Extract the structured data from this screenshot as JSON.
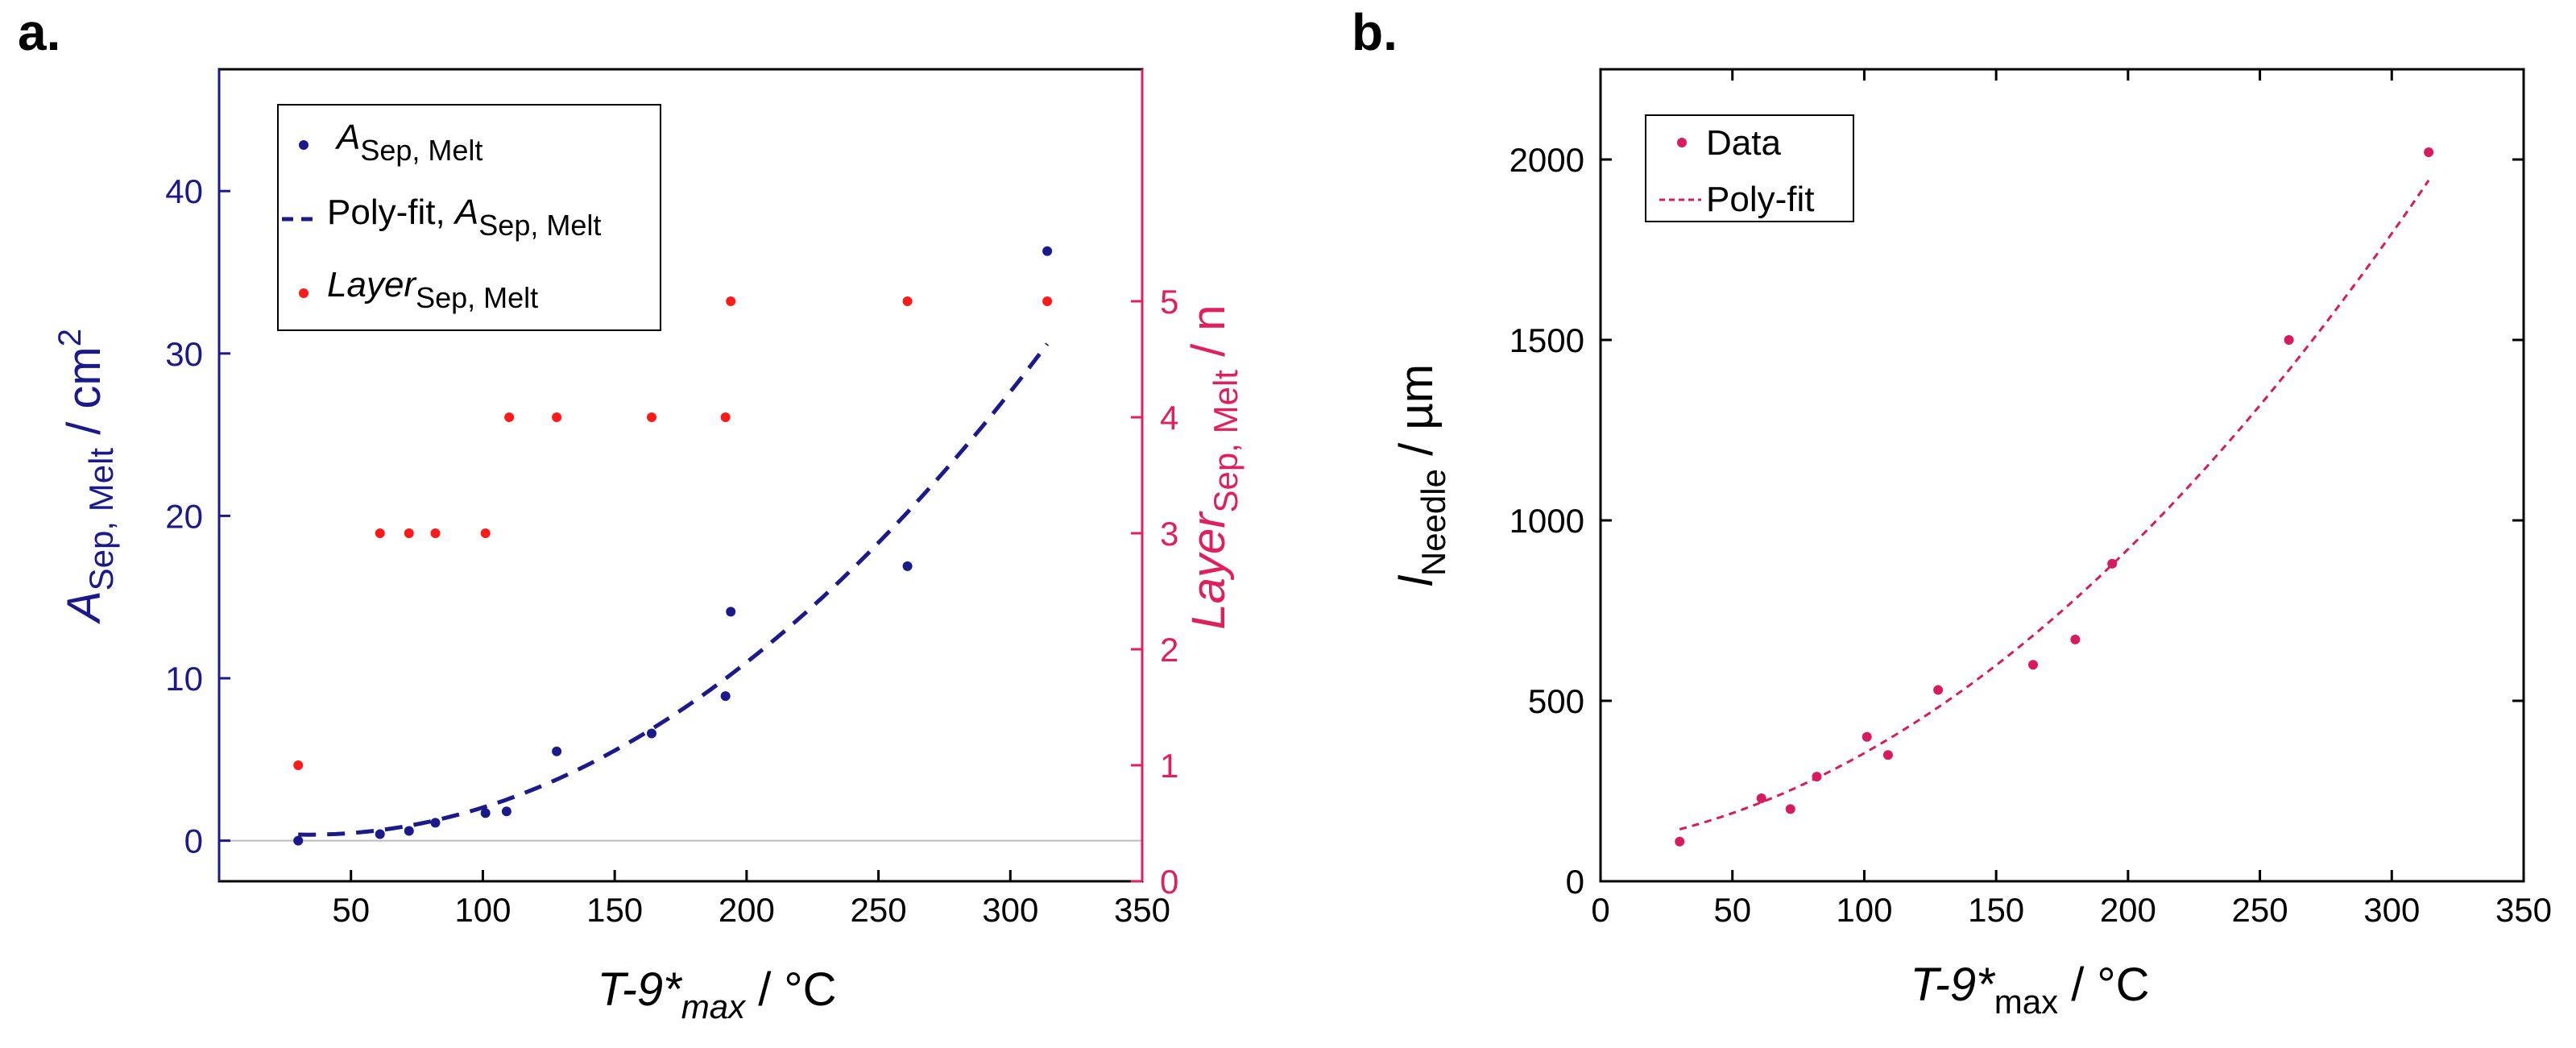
{
  "chart_data": [
    {
      "panel_label": "a.",
      "type": "scatter",
      "x_label": {
        "main": "T-9*",
        "sub": "max",
        "unit": " / °C"
      },
      "xlim": [
        0,
        350
      ],
      "x_ticks": [
        50,
        100,
        150,
        200,
        250,
        300,
        350
      ],
      "y_left": {
        "label": {
          "main": "A",
          "sub": "Sep, Melt",
          "unit": " / cm",
          "sup": "2"
        },
        "lim": [
          -2.5,
          47.5
        ],
        "ticks": [
          0,
          10,
          20,
          30,
          40
        ],
        "color": "#1a1a8c"
      },
      "y_right": {
        "label": {
          "main": "Layer",
          "sub": "Sep, Melt",
          "unit": " / n"
        },
        "lim": [
          0,
          7
        ],
        "ticks": [
          0,
          1,
          2,
          3,
          4,
          5
        ],
        "color": "#e0205c"
      },
      "zero_line": true,
      "legend": {
        "position": "top-left",
        "entries": [
          {
            "main": "A",
            "sub": "Sep, Melt",
            "italic": true,
            "marker": "dot",
            "color": "#1a1a8c"
          },
          {
            "main": "Poly-fit, ",
            "main2": "A",
            "sub": "Sep, Melt",
            "marker": "dash",
            "color": "#1a1a8c"
          },
          {
            "main": "Layer",
            "sub": "Sep, Melt",
            "italic": true,
            "marker": "dot",
            "color": "#ff1a1a"
          }
        ]
      },
      "series": [
        {
          "name": "A_Sep,Melt",
          "axis": "left",
          "style": "dot",
          "color": "#1a1a8c",
          "x": [
            30,
            61,
            72,
            82,
            101,
            109,
            128,
            164,
            192,
            194,
            261,
            314
          ],
          "y": [
            0.0,
            0.4,
            0.6,
            1.1,
            1.7,
            1.8,
            5.5,
            6.6,
            8.9,
            14.1,
            16.9,
            36.3
          ]
        },
        {
          "name": "Poly-fit, A_Sep,Melt",
          "axis": "left",
          "style": "dashed",
          "color": "#1a1a8c",
          "fit_coefficients": [
            0.000386,
            -0.0264,
            0.82
          ],
          "x_range": [
            30,
            314
          ]
        },
        {
          "name": "Layer_Sep,Melt",
          "axis": "right",
          "style": "dot",
          "color": "#ff1a1a",
          "x": [
            30,
            61,
            72,
            82,
            101,
            110,
            128,
            164,
            192,
            194,
            261,
            314
          ],
          "y": [
            1,
            3,
            3,
            3,
            3,
            4,
            4,
            4,
            4,
            5,
            5,
            5
          ]
        }
      ]
    },
    {
      "panel_label": "b.",
      "type": "scatter",
      "x_label": {
        "main": "T-9*",
        "sub": "max",
        "unit": " / °C"
      },
      "xlim": [
        0,
        350
      ],
      "x_ticks": [
        0,
        50,
        100,
        150,
        200,
        250,
        300,
        350
      ],
      "y_left": {
        "label": {
          "main": "l",
          "sub": "Needle",
          "unit": " / µm"
        },
        "lim": [
          0,
          2250
        ],
        "ticks": [
          0,
          500,
          1000,
          1500,
          2000
        ],
        "color": "#000000"
      },
      "legend": {
        "position": "top-left",
        "entries": [
          {
            "main": "Data",
            "marker": "dot",
            "color": "#d81b60"
          },
          {
            "main": "Poly-fit",
            "marker": "dash",
            "color": "#d81b60"
          }
        ]
      },
      "series": [
        {
          "name": "Data",
          "style": "dot",
          "color": "#d81b60",
          "x": [
            30,
            61,
            72,
            82,
            101,
            109,
            128,
            164,
            180,
            194,
            261,
            314
          ],
          "y": [
            110,
            230,
            200,
            290,
            400,
            350,
            530,
            600,
            670,
            880,
            1500,
            2020
          ]
        },
        {
          "name": "Poly-fit",
          "style": "dashed",
          "color": "#d81b60",
          "fit_coefficients": [
            0.0155,
            1.0,
            100
          ],
          "x_range": [
            30,
            314
          ]
        }
      ]
    }
  ]
}
